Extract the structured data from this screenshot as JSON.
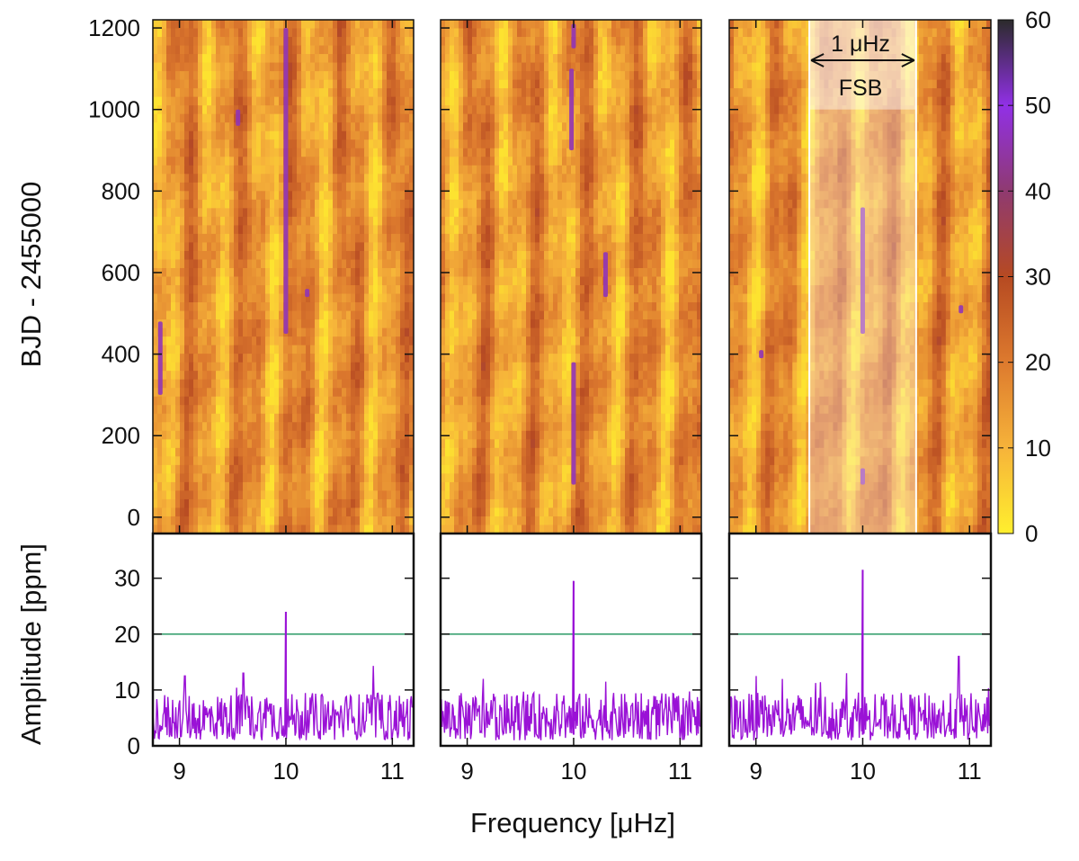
{
  "chart_data": {
    "type": "heatmap",
    "layout": "three columns; top row sliding-window amplitude maps, bottom row amplitude spectra",
    "xlabel": "Frequency [μHz]",
    "xlim": [
      8.75,
      11.2
    ],
    "xticks": [
      "9",
      "10",
      "11"
    ],
    "heatmap_ylabel": "BJD - 2455000",
    "heatmap_ylim": [
      -40,
      1220
    ],
    "heatmap_yticks": [
      "0",
      "200",
      "400",
      "600",
      "800",
      "1000",
      "1200"
    ],
    "spectrum_ylabel": "Amplitude [ppm]",
    "spectrum_ylim": [
      0,
      38
    ],
    "spectrum_yticks": [
      "0",
      "10",
      "20",
      "30"
    ],
    "colorbar": {
      "range": [
        0,
        60
      ],
      "ticks": [
        "0",
        "10",
        "20",
        "30",
        "40",
        "50",
        "60"
      ],
      "colors": [
        "#ffef2e",
        "#f6b33a",
        "#dd7a2e",
        "#b64a22",
        "#8f3a70",
        "#9130e6",
        "#2b2b2b"
      ]
    },
    "threshold": {
      "value": 20,
      "color": "#3ba272"
    },
    "spectrum_color": "#9a12d6",
    "panels": [
      {
        "peak_freq": 10.0,
        "peak_amp": 24.0,
        "secondary_peaks": [
          [
            9.05,
            12.5
          ],
          [
            9.6,
            13.0
          ],
          [
            10.82,
            14.3
          ]
        ],
        "streaks": [
          [
            8.82,
            300,
            480
          ],
          [
            10.0,
            450,
            1200
          ],
          [
            10.2,
            540,
            560
          ],
          [
            9.55,
            960,
            1000
          ]
        ]
      },
      {
        "peak_freq": 10.0,
        "peak_amp": 29.5,
        "secondary_peaks": [
          [
            9.15,
            12.0
          ],
          [
            10.3,
            11.5
          ]
        ],
        "streaks": [
          [
            10.0,
            80,
            380
          ],
          [
            9.98,
            900,
            1100
          ],
          [
            10.0,
            1150,
            1210
          ],
          [
            10.3,
            540,
            650
          ]
        ]
      },
      {
        "peak_freq": 10.0,
        "peak_amp": 31.5,
        "secondary_peaks": [
          [
            9.0,
            12.5
          ],
          [
            9.85,
            13.0
          ],
          [
            10.9,
            16.0
          ]
        ],
        "streaks": [
          [
            10.0,
            450,
            760
          ],
          [
            10.0,
            80,
            120
          ],
          [
            10.92,
            500,
            520
          ],
          [
            9.05,
            390,
            410
          ]
        ]
      }
    ],
    "fsb": {
      "panel": 3,
      "band": [
        9.5,
        10.5
      ],
      "label_top": "1 μHz",
      "label_bottom": "FSB",
      "header_from": 1000
    }
  }
}
